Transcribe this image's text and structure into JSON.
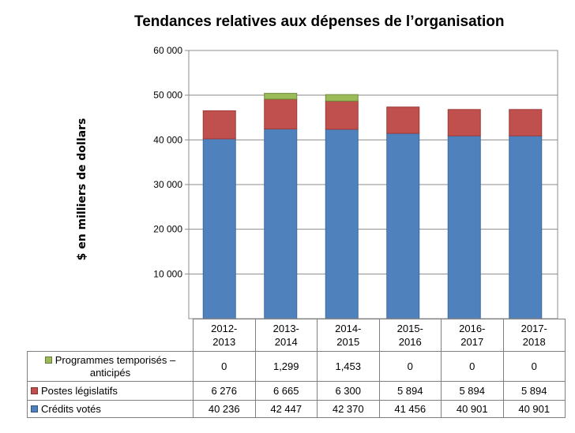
{
  "chart_data": {
    "type": "bar",
    "stacked": true,
    "title": "Tendances relatives aux dépenses de l’organisation",
    "ylabel": "$ en milliers de dollars",
    "ylim": [
      0,
      60000
    ],
    "yticks": [
      10000,
      20000,
      30000,
      40000,
      50000,
      60000
    ],
    "ytick_labels": [
      "10 000",
      "20 000",
      "30 000",
      "40 000",
      "50 000",
      "60 000"
    ],
    "categories": [
      "2012-\n2013",
      "2013-\n2014",
      "2014-\n2015",
      "2015-\n2016",
      "2016-\n2017",
      "2017-\n2018"
    ],
    "grid": true,
    "legend": "bottom-left, in data table",
    "series": [
      {
        "name": "Programmes temporisés –\nanticipés",
        "color": "#9BBB59",
        "values": [
          0,
          1299,
          1453,
          0,
          0,
          0
        ],
        "labels": [
          "0",
          "1,299",
          "1,453",
          "0",
          "0",
          "0"
        ]
      },
      {
        "name": "Postes législatifs",
        "color": "#C0504D",
        "values": [
          6276,
          6665,
          6300,
          5894,
          5894,
          5894
        ],
        "labels": [
          "6 276",
          "6 665",
          "6 300",
          "5 894",
          "5 894",
          "5 894"
        ]
      },
      {
        "name": "Crédits votés",
        "color": "#4F81BD",
        "values": [
          40236,
          42447,
          42370,
          41456,
          40901,
          40901
        ],
        "labels": [
          "40 236",
          "42 447",
          "42 370",
          "41 456",
          "40 901",
          "40 901"
        ]
      }
    ]
  }
}
